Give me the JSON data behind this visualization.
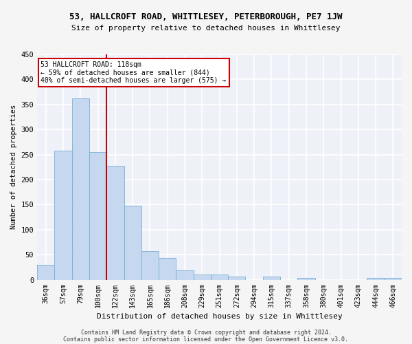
{
  "title": "53, HALLCROFT ROAD, WHITTLESEY, PETERBOROUGH, PE7 1JW",
  "subtitle": "Size of property relative to detached houses in Whittlesey",
  "xlabel": "Distribution of detached houses by size in Whittlesey",
  "ylabel": "Number of detached properties",
  "categories": [
    "36sqm",
    "57sqm",
    "79sqm",
    "100sqm",
    "122sqm",
    "143sqm",
    "165sqm",
    "186sqm",
    "208sqm",
    "229sqm",
    "251sqm",
    "272sqm",
    "294sqm",
    "315sqm",
    "337sqm",
    "358sqm",
    "380sqm",
    "401sqm",
    "423sqm",
    "444sqm",
    "466sqm"
  ],
  "values": [
    30,
    258,
    362,
    255,
    228,
    148,
    57,
    43,
    19,
    11,
    10,
    6,
    0,
    6,
    0,
    3,
    0,
    0,
    0,
    3,
    4
  ],
  "bar_color": "#c5d8f0",
  "bar_edge_color": "#7aafd4",
  "vertical_line_color": "#cc0000",
  "vertical_line_x": 3.5,
  "annotation_text_line1": "53 HALLCROFT ROAD: 118sqm",
  "annotation_text_line2": "← 59% of detached houses are smaller (844)",
  "annotation_text_line3": "40% of semi-detached houses are larger (575) →",
  "annotation_box_color": "#ffffff",
  "annotation_box_edge_color": "#cc0000",
  "background_color": "#eef2f8",
  "grid_color": "#ffffff",
  "fig_background": "#f5f5f5",
  "ylim": [
    0,
    450
  ],
  "yticks": [
    0,
    50,
    100,
    150,
    200,
    250,
    300,
    350,
    400,
    450
  ],
  "footer_line1": "Contains HM Land Registry data © Crown copyright and database right 2024.",
  "footer_line2": "Contains public sector information licensed under the Open Government Licence v3.0."
}
